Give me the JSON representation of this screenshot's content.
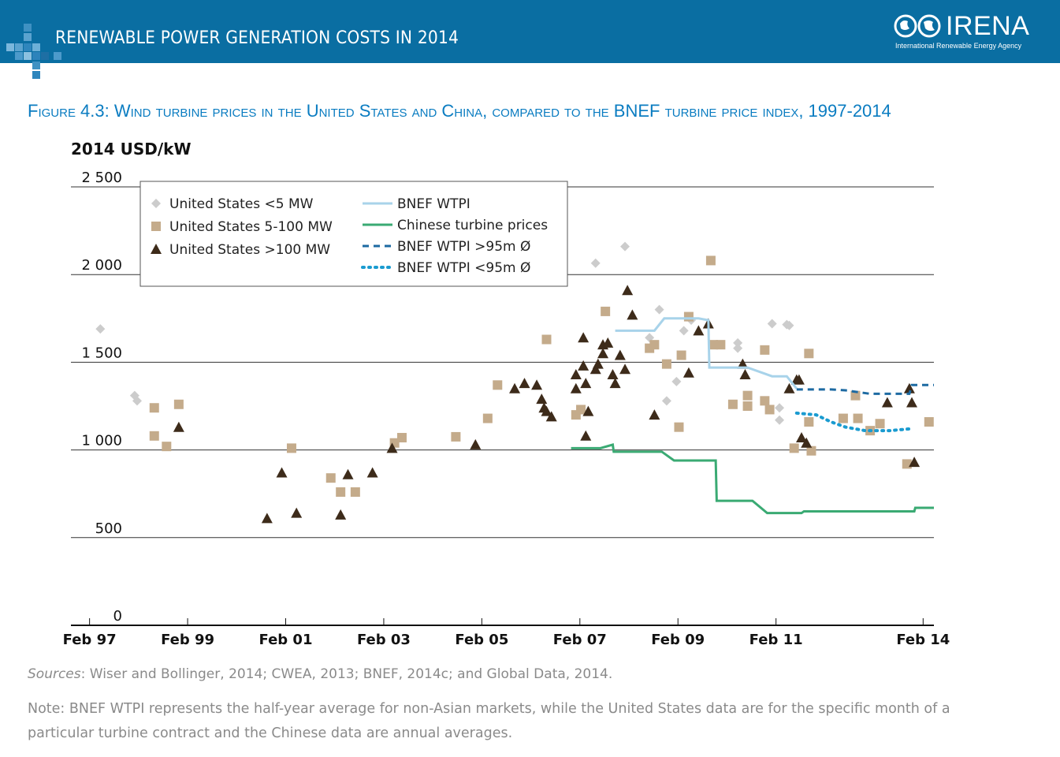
{
  "header": {
    "banner_title": "RENEWABLE POWER GENERATION COSTS IN 2014",
    "logo_text": "IRENA",
    "logo_subtitle": "International Renewable Energy Agency",
    "brand_color": "#0a6ea2"
  },
  "figure_title": "Figure 4.3: Wind turbine prices in the United States and China, compared to the BNEF turbine price index, 1997-2014",
  "footer": {
    "sources_label": "Sources",
    "sources_text": ": Wiser and Bollinger, 2014; CWEA, 2013; BNEF, 2014c; and Global Data, 2014.",
    "note": "Note: BNEF WTPI represents the half-year average for non-Asian markets, while the United States data are for the specific month of a particular turbine contract and the Chinese data are annual averages."
  },
  "chart_data": {
    "type": "scatter",
    "title": "Figure 4.3: Wind turbine prices in the United States and China, compared to the BNEF turbine price index, 1997-2014",
    "ylabel": "2014 USD/kW",
    "xlabel": "",
    "ylim": [
      0,
      2500
    ],
    "xlim": [
      1996.7,
      2014.3
    ],
    "yticks": [
      0,
      500,
      1000,
      1500,
      2000,
      2500
    ],
    "ytick_labels": [
      "0",
      "500",
      "1 000",
      "1 500",
      "2 000",
      "2 500"
    ],
    "xticks": [
      1997.08,
      1999.08,
      2001.08,
      2003.08,
      2005.08,
      2007.08,
      2009.08,
      2011.08,
      2014.08
    ],
    "xtick_labels": [
      "Feb 97",
      "Feb 99",
      "Feb 01",
      "Feb 03",
      "Feb 05",
      "Feb 07",
      "Feb 09",
      "Feb 11",
      "Feb 14"
    ],
    "legend_position": "top-left",
    "colors": {
      "us_small": "#cccccc",
      "us_mid": "#c4ab8b",
      "us_large": "#3d2b1a",
      "bnef": "#a8d3ea",
      "chinese": "#3aaa73",
      "bnef_large": "#1d6aa2",
      "bnef_small": "#1a9bd0",
      "grid": "#333333"
    },
    "series": [
      {
        "name": "United States <5 MW",
        "marker": "diamond",
        "points": [
          [
            1997.3,
            1690
          ],
          [
            1998.0,
            1310
          ],
          [
            1998.05,
            1280
          ],
          [
            2007.4,
            2065
          ],
          [
            2008.0,
            2160
          ],
          [
            2008.5,
            1640
          ],
          [
            2008.7,
            1800
          ],
          [
            2008.85,
            1280
          ],
          [
            2009.05,
            1390
          ],
          [
            2009.2,
            1680
          ],
          [
            2009.35,
            1740
          ],
          [
            2010.3,
            1610
          ],
          [
            2010.3,
            1580
          ],
          [
            2011.0,
            1720
          ],
          [
            2011.3,
            1715
          ],
          [
            2011.35,
            1710
          ],
          [
            2011.15,
            1240
          ],
          [
            2011.15,
            1170
          ]
        ]
      },
      {
        "name": "United States 5-100 MW",
        "marker": "square",
        "points": [
          [
            1998.4,
            1240
          ],
          [
            1998.4,
            1080
          ],
          [
            1998.65,
            1020
          ],
          [
            1998.9,
            1260
          ],
          [
            2001.2,
            1010
          ],
          [
            2002.0,
            840
          ],
          [
            2002.2,
            760
          ],
          [
            2002.5,
            760
          ],
          [
            2003.3,
            1040
          ],
          [
            2003.45,
            1070
          ],
          [
            2004.55,
            1075
          ],
          [
            2005.2,
            1180
          ],
          [
            2005.4,
            1370
          ],
          [
            2006.4,
            1630
          ],
          [
            2007.0,
            1200
          ],
          [
            2007.1,
            1230
          ],
          [
            2007.6,
            1790
          ],
          [
            2008.5,
            1580
          ],
          [
            2008.6,
            1600
          ],
          [
            2008.85,
            1490
          ],
          [
            2009.1,
            1130
          ],
          [
            2009.15,
            1540
          ],
          [
            2009.3,
            1760
          ],
          [
            2009.75,
            2080
          ],
          [
            2009.8,
            1600
          ],
          [
            2009.95,
            1600
          ],
          [
            2010.2,
            1260
          ],
          [
            2010.5,
            1310
          ],
          [
            2010.5,
            1250
          ],
          [
            2010.85,
            1570
          ],
          [
            2010.85,
            1280
          ],
          [
            2010.95,
            1230
          ],
          [
            2011.45,
            1010
          ],
          [
            2011.75,
            1550
          ],
          [
            2011.75,
            1160
          ],
          [
            2011.8,
            995
          ],
          [
            2012.45,
            1180
          ],
          [
            2012.7,
            1310
          ],
          [
            2012.75,
            1180
          ],
          [
            2013.0,
            1110
          ],
          [
            2013.2,
            1150
          ],
          [
            2013.75,
            920
          ],
          [
            2014.2,
            1160
          ]
        ]
      },
      {
        "name": "United States >100 MW",
        "marker": "triangle",
        "points": [
          [
            1998.9,
            1130
          ],
          [
            2000.7,
            610
          ],
          [
            2001.0,
            870
          ],
          [
            2001.3,
            640
          ],
          [
            2002.2,
            630
          ],
          [
            2002.35,
            860
          ],
          [
            2002.85,
            870
          ],
          [
            2003.25,
            1010
          ],
          [
            2004.95,
            1030
          ],
          [
            2005.75,
            1350
          ],
          [
            2005.95,
            1380
          ],
          [
            2006.2,
            1370
          ],
          [
            2006.3,
            1290
          ],
          [
            2006.35,
            1240
          ],
          [
            2006.4,
            1220
          ],
          [
            2006.5,
            1190
          ],
          [
            2007.0,
            1430
          ],
          [
            2007.0,
            1350
          ],
          [
            2007.15,
            1640
          ],
          [
            2007.15,
            1480
          ],
          [
            2007.2,
            1380
          ],
          [
            2007.2,
            1080
          ],
          [
            2007.25,
            1220
          ],
          [
            2007.4,
            1460
          ],
          [
            2007.45,
            1490
          ],
          [
            2007.55,
            1550
          ],
          [
            2007.55,
            1600
          ],
          [
            2007.65,
            1610
          ],
          [
            2007.75,
            1430
          ],
          [
            2007.8,
            1380
          ],
          [
            2007.9,
            1540
          ],
          [
            2008.0,
            1460
          ],
          [
            2008.05,
            1910
          ],
          [
            2008.15,
            1770
          ],
          [
            2008.6,
            1200
          ],
          [
            2009.3,
            1440
          ],
          [
            2009.5,
            1680
          ],
          [
            2009.7,
            1720
          ],
          [
            2010.4,
            1490
          ],
          [
            2010.45,
            1430
          ],
          [
            2011.35,
            1350
          ],
          [
            2011.5,
            1400
          ],
          [
            2011.55,
            1400
          ],
          [
            2011.6,
            1070
          ],
          [
            2011.7,
            1040
          ],
          [
            2013.35,
            1270
          ],
          [
            2013.8,
            1350
          ],
          [
            2013.85,
            1270
          ],
          [
            2013.9,
            930
          ]
        ]
      },
      {
        "name": "BNEF WTPI",
        "marker": "line",
        "style": "solid",
        "x": [
          2007.8,
          2008.6,
          2008.8,
          2009.5,
          2009.7,
          2009.72,
          2010.5,
          2011.0,
          2011.3,
          2011.5
        ],
        "y": [
          1680,
          1680,
          1750,
          1750,
          1740,
          1470,
          1470,
          1420,
          1420,
          1350
        ]
      },
      {
        "name": "Chinese turbine prices",
        "marker": "line",
        "style": "solid",
        "x": [
          2006.9,
          2007.5,
          2007.75,
          2007.77,
          2008.75,
          2009.0,
          2009.85,
          2009.87,
          2010.2,
          2010.6,
          2010.9,
          2011.4,
          2011.6,
          2011.65,
          2013.9,
          2013.92,
          2014.3
        ],
        "y": [
          1010,
          1010,
          1030,
          990,
          990,
          940,
          940,
          710,
          710,
          710,
          640,
          640,
          640,
          650,
          650,
          670,
          670
        ]
      },
      {
        "name": "BNEF WTPI >95m Ø",
        "marker": "line",
        "style": "dashed",
        "x": [
          2011.5,
          2012.2,
          2012.5,
          2013.0,
          2013.8,
          2013.85,
          2014.3
        ],
        "y": [
          1345,
          1345,
          1340,
          1320,
          1320,
          1370,
          1370
        ]
      },
      {
        "name": "BNEF WTPI <95m Ø",
        "marker": "line",
        "style": "dotted",
        "x": [
          2011.5,
          2011.9,
          2012.2,
          2012.5,
          2012.9,
          2013.4,
          2013.8
        ],
        "y": [
          1210,
          1200,
          1160,
          1130,
          1110,
          1110,
          1120
        ]
      }
    ]
  }
}
